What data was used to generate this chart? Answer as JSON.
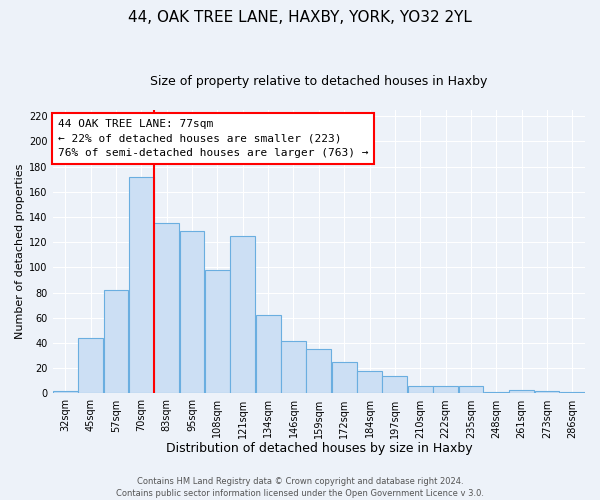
{
  "title": "44, OAK TREE LANE, HAXBY, YORK, YO32 2YL",
  "subtitle": "Size of property relative to detached houses in Haxby",
  "xlabel": "Distribution of detached houses by size in Haxby",
  "ylabel": "Number of detached properties",
  "bar_color": "#ccdff4",
  "bar_edge_color": "#6aaee0",
  "background_color": "#edf2f9",
  "grid_color": "#ffffff",
  "categories": [
    "32sqm",
    "45sqm",
    "57sqm",
    "70sqm",
    "83sqm",
    "95sqm",
    "108sqm",
    "121sqm",
    "134sqm",
    "146sqm",
    "159sqm",
    "172sqm",
    "184sqm",
    "197sqm",
    "210sqm",
    "222sqm",
    "235sqm",
    "248sqm",
    "261sqm",
    "273sqm",
    "286sqm"
  ],
  "values": [
    2,
    44,
    82,
    172,
    135,
    129,
    98,
    125,
    62,
    42,
    35,
    25,
    18,
    14,
    6,
    6,
    6,
    1,
    3,
    2,
    1
  ],
  "ylim": [
    0,
    225
  ],
  "yticks": [
    0,
    20,
    40,
    60,
    80,
    100,
    120,
    140,
    160,
    180,
    200,
    220
  ],
  "red_line_x": 3.5,
  "annotation_title": "44 OAK TREE LANE: 77sqm",
  "annotation_line1": "← 22% of detached houses are smaller (223)",
  "annotation_line2": "76% of semi-detached houses are larger (763) →",
  "footer1": "Contains HM Land Registry data © Crown copyright and database right 2024.",
  "footer2": "Contains public sector information licensed under the Open Government Licence v 3.0.",
  "title_fontsize": 11,
  "subtitle_fontsize": 9,
  "xlabel_fontsize": 9,
  "ylabel_fontsize": 8,
  "tick_fontsize": 7,
  "footer_fontsize": 6,
  "ann_fontsize": 8
}
